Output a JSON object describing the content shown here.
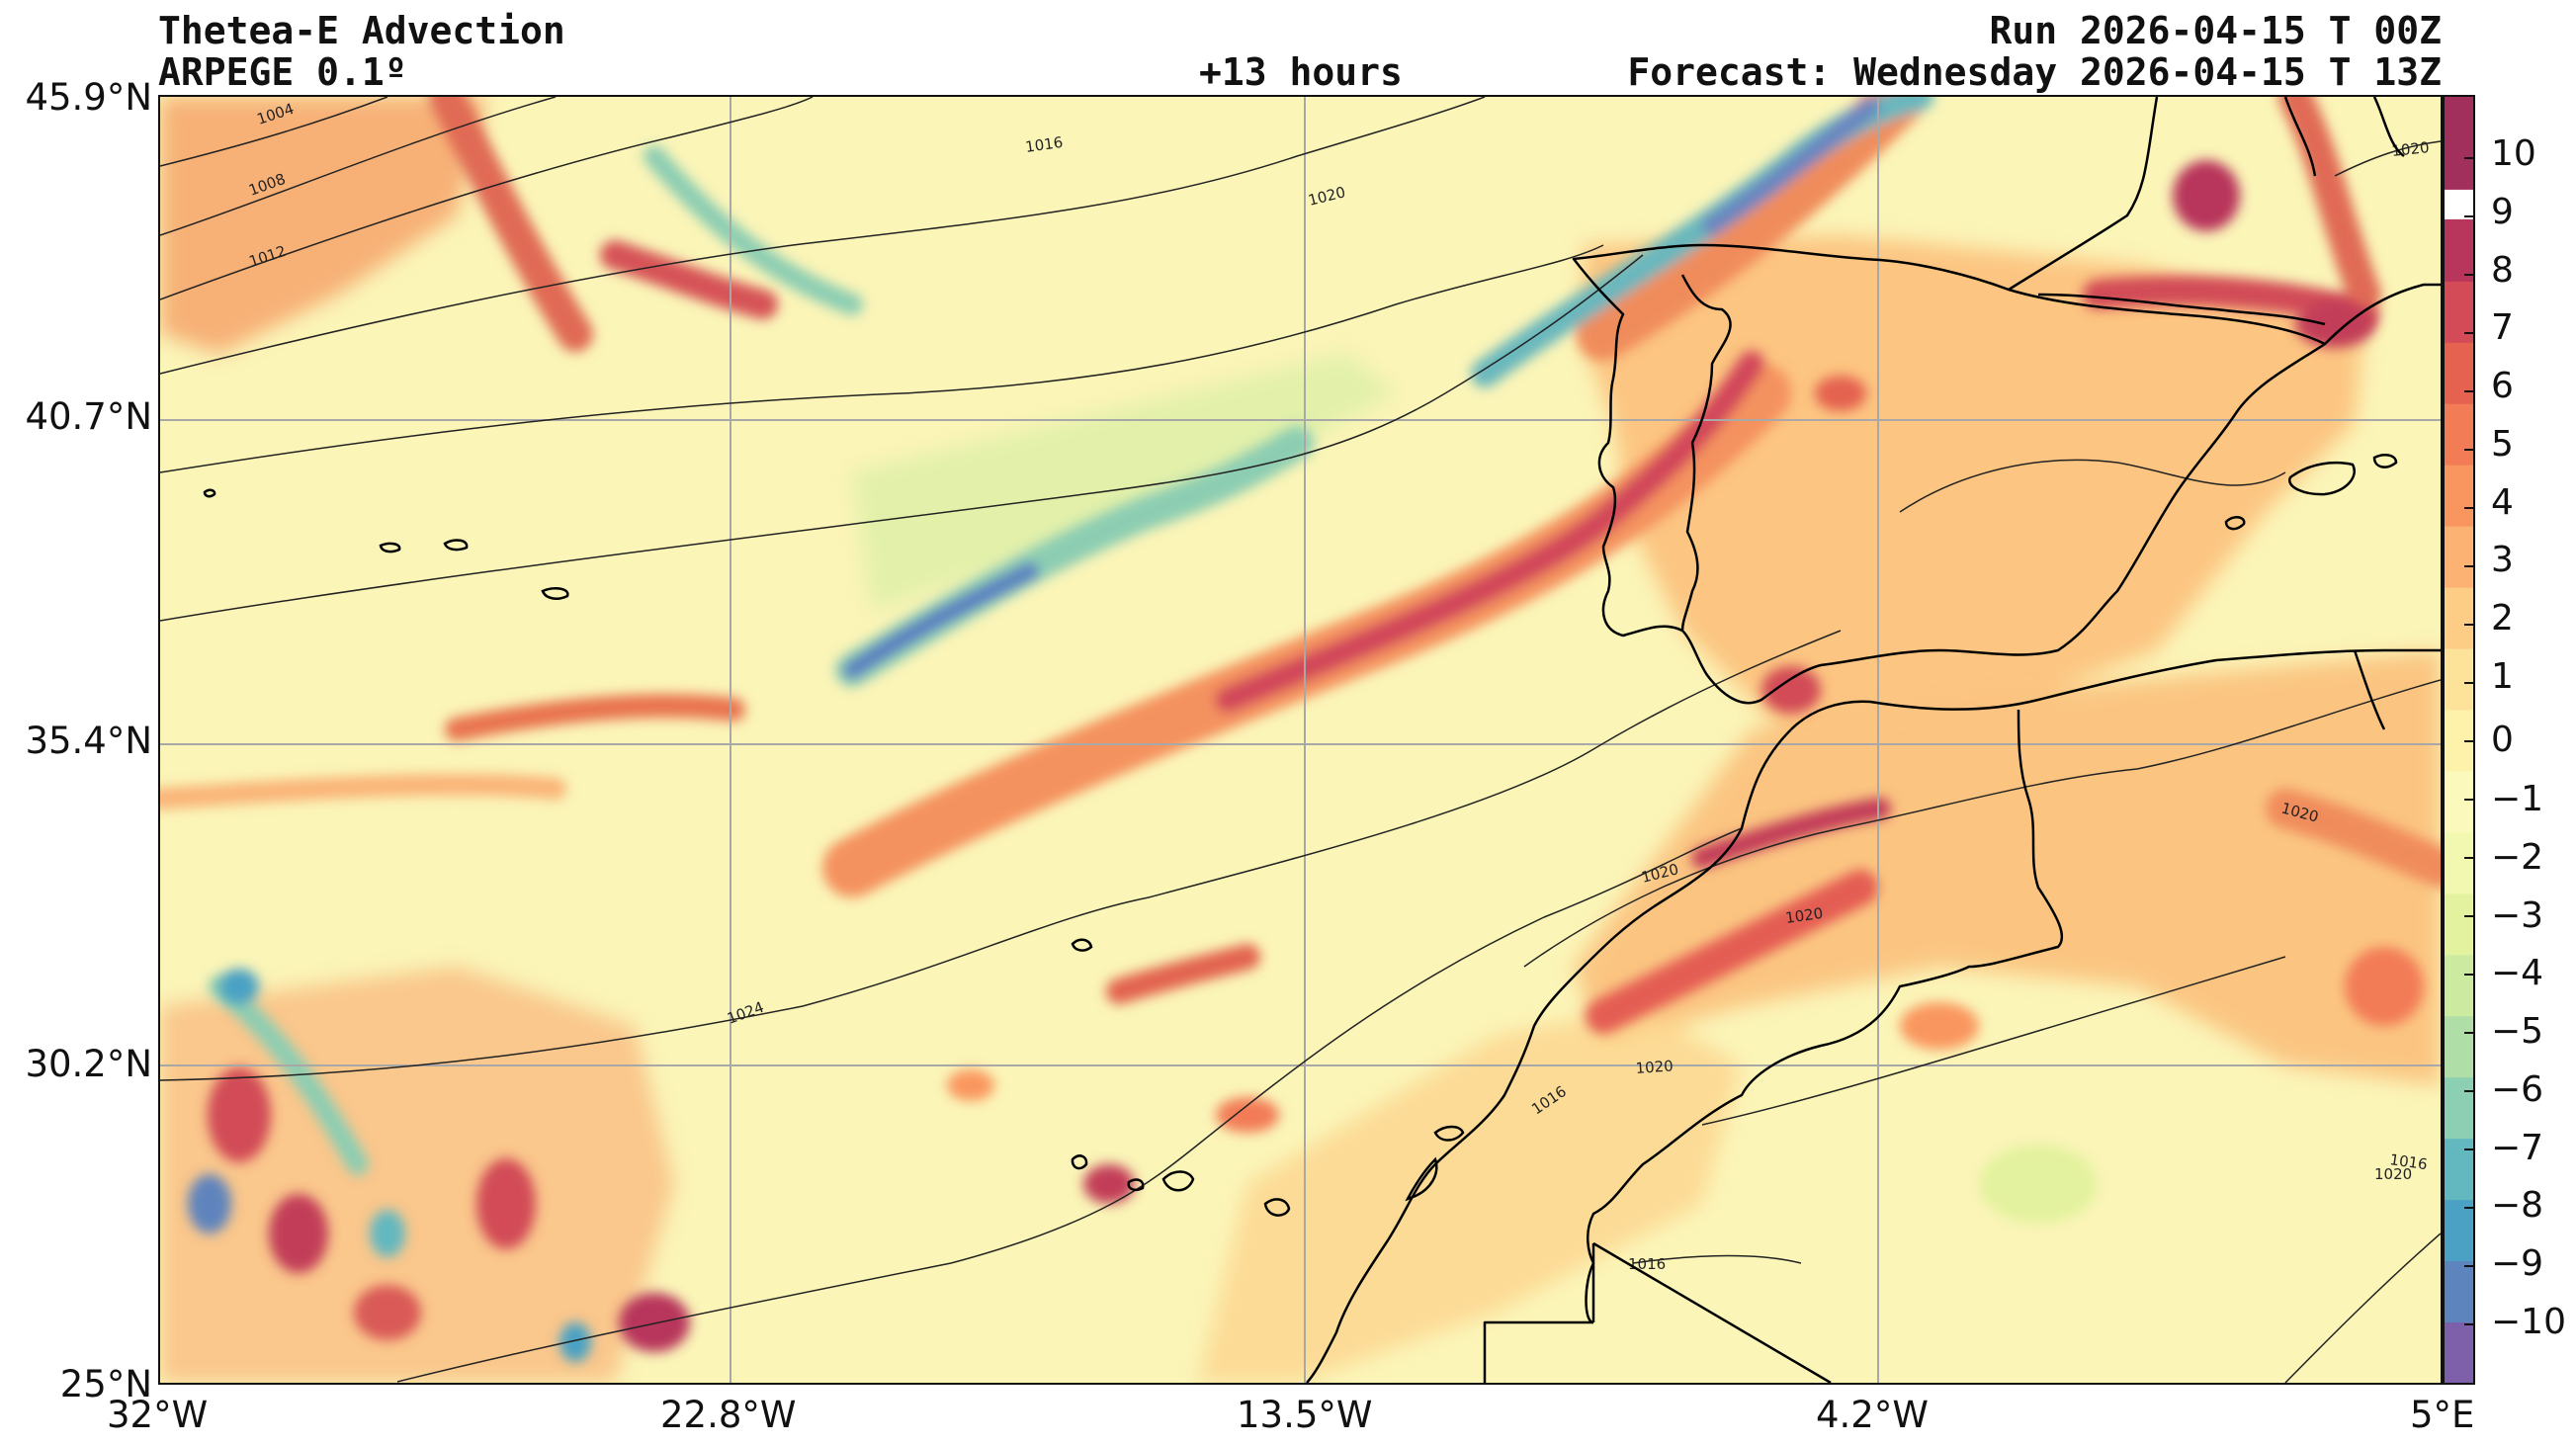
{
  "header": {
    "title_left": "Thetea-E Advection",
    "subtitle_left": "ARPEGE 0.1º",
    "center": "+13 hours",
    "run": "Run 2026-04-15 T 00Z",
    "forecast": "Forecast: Wednesday 2026-04-15 T 13Z"
  },
  "axes": {
    "lat_ticks": [
      "45.9°N",
      "40.7°N",
      "35.4°N",
      "30.2°N",
      "25°N"
    ],
    "lon_ticks": [
      "32°W",
      "22.8°W",
      "13.5°W",
      "4.2°W",
      "5°E"
    ]
  },
  "colorbar": {
    "ticks": [
      "10",
      "9",
      "8",
      "7",
      "6",
      "5",
      "4",
      "3",
      "2",
      "1",
      "0",
      "−1",
      "−2",
      "−3",
      "−4",
      "−5",
      "−6",
      "−7",
      "−8",
      "−9",
      "−10"
    ],
    "colors": [
      "#7e5fa9",
      "#5e84bd",
      "#4aa1c4",
      "#63b8c0",
      "#8dcfb2",
      "#afdfa7",
      "#cdeba0",
      "#e3f29e",
      "#f3f8b0",
      "#fbf9bc",
      "#fef2ab",
      "#fde39a",
      "#fdcd86",
      "#fcb273",
      "#f9965f",
      "#f27c56",
      "#e4624f",
      "#d24b57",
      "#b8365b",
      "#a2305d"
    ]
  },
  "isobars": [
    "1004",
    "1008",
    "1012",
    "1016",
    "1020",
    "1020",
    "1024",
    "1020",
    "1020",
    "1020",
    "1020",
    "1016",
    "1016",
    "1016",
    "1020"
  ],
  "colors": {
    "field_base": "#fbf5b8",
    "warm_light": "#fcd58d",
    "warm_mid": "#f39a62",
    "warm_strong": "#d95a57",
    "warm_extreme": "#a8305d",
    "cold_light": "#cfeba4",
    "cold_mid": "#7dc5b5",
    "cold_strong": "#5a8cc2",
    "coast": "#000000",
    "isobar": "#222222",
    "grid": "#a8a8a8"
  }
}
